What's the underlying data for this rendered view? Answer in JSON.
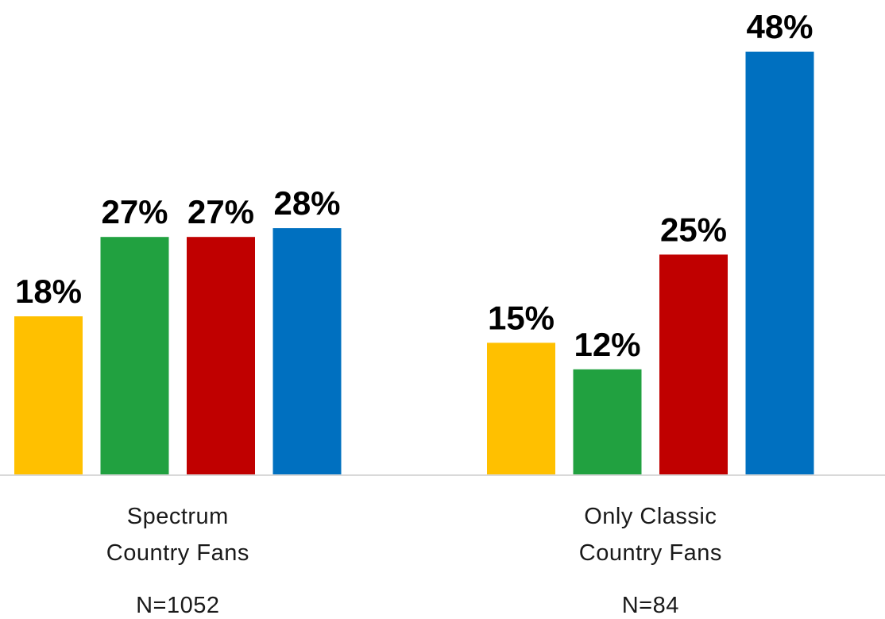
{
  "chart_data": {
    "type": "bar",
    "categories": [
      {
        "lines": [
          "Spectrum",
          "Country Fans"
        ],
        "note": "N=1052"
      },
      {
        "lines": [
          "Only Classic",
          "Country Fans"
        ],
        "note": "N=84"
      }
    ],
    "series": [
      {
        "color": "#FFC000",
        "values": [
          18,
          15
        ]
      },
      {
        "color": "#21A140",
        "values": [
          27,
          12
        ]
      },
      {
        "color": "#C00000",
        "values": [
          27,
          25
        ]
      },
      {
        "color": "#0070C0",
        "values": [
          28,
          48
        ]
      }
    ],
    "value_suffix": "%",
    "ylim": [
      0,
      48
    ],
    "grid": false,
    "legend": "none",
    "axis_color": "#D9D9D9"
  }
}
